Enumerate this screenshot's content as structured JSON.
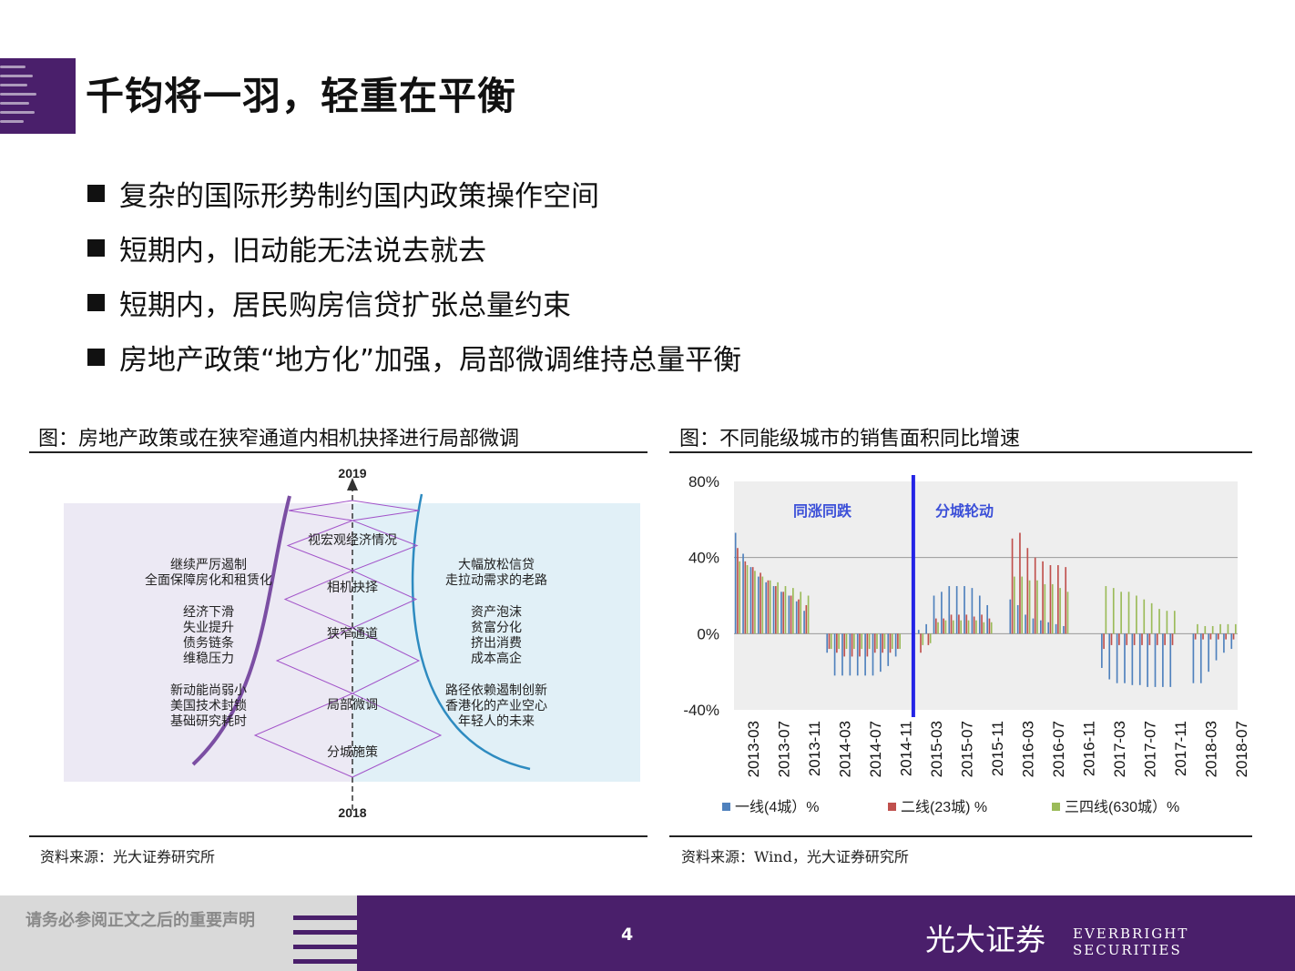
{
  "page": {
    "title": "千钧将一羽，轻重在平衡",
    "bullets": [
      "复杂的国际形势制约国内政策操作空间",
      "短期内，旧动能无法说去就去",
      "短期内，居民购房信贷扩张总量约束",
      "房地产政策“地方化”加强，局部微调维持总量平衡"
    ]
  },
  "figure_left": {
    "title": "图：房地产政策或在狭窄通道内相机抉择进行局部微调",
    "source": "资料来源：光大证券研究所",
    "top_year": "2019",
    "bottom_year": "2018",
    "center_labels": [
      "视宏观经济情况",
      "相机抉择",
      "狭窄通道",
      "局部微调",
      "分城施策"
    ],
    "left_groups": [
      [
        "继续严厉遏制",
        "全面保障房化和租赁化"
      ],
      [
        "经济下滑",
        "失业提升",
        "债务链条",
        "维稳压力"
      ],
      [
        "新动能尚弱小",
        "美国技术封锁",
        "基础研究耗时"
      ]
    ],
    "right_groups": [
      [
        "大幅放松信贷",
        "走拉动需求的老路"
      ],
      [
        "资产泡沫",
        "贫富分化",
        "挤出消费",
        "成本高企"
      ],
      [
        "路径依赖遏制创新",
        "香港化的产业空心",
        "年轻人的未来"
      ]
    ],
    "colors": {
      "left_fill": "#ece9f4",
      "right_fill": "#e1f0f7",
      "left_curve": "#7b4ea3",
      "right_curve": "#2e8bc0",
      "zigzag": "#a253c9"
    }
  },
  "figure_right": {
    "title": "图：不同能级城市的销售面积同比增速",
    "source": "资料来源：Wind，光大证券研究所"
  },
  "chart_data": {
    "type": "bar",
    "ylim": [
      -40,
      80
    ],
    "y_ticks": [
      "80%",
      "40%",
      "0%",
      "-40%"
    ],
    "y_tick_values": [
      80,
      40,
      0,
      -40
    ],
    "x_tick_labels": [
      "2013-03",
      "2013-07",
      "2013-11",
      "2014-03",
      "2014-07",
      "2014-11",
      "2015-03",
      "2015-07",
      "2015-11",
      "2016-03",
      "2016-07",
      "2016-11",
      "2017-03",
      "2017-07",
      "2017-11",
      "2018-03",
      "2018-07"
    ],
    "x_start": "2013-01",
    "x_end": "2018-10",
    "annotations": [
      "同涨同跌",
      "分城轮动"
    ],
    "divider_at": "2014-12",
    "grid": "horizontal-at-40",
    "legend_position": "bottom",
    "colors": {
      "tier1": "#4f81bd",
      "tier2": "#c0504d",
      "tier34": "#9bbb59",
      "divider": "#2323e6",
      "annotation": "#3b4fd8"
    },
    "series": [
      {
        "name": "一线(4城）%",
        "values": [
          53,
          42,
          35,
          30,
          27,
          25,
          22,
          20,
          17,
          12,
          null,
          null,
          -10,
          -22,
          -22,
          -22,
          -22,
          -22,
          -22,
          -20,
          -17,
          -12,
          null,
          null,
          2,
          5,
          20,
          22,
          25,
          25,
          25,
          24,
          20,
          15,
          null,
          null,
          18,
          15,
          10,
          8,
          7,
          6,
          5,
          4,
          null,
          null,
          null,
          null,
          -18,
          -24,
          -26,
          -26,
          -27,
          -27,
          -28,
          -28,
          -28,
          -28,
          null,
          null,
          -26,
          -26,
          -20,
          -14,
          -10,
          -8
        ]
      },
      {
        "name": "二线(23城) %",
        "values": [
          45,
          38,
          35,
          32,
          28,
          25,
          22,
          20,
          18,
          15,
          null,
          null,
          -8,
          -10,
          -12,
          -12,
          -12,
          -12,
          -10,
          -10,
          -10,
          -8,
          null,
          null,
          -10,
          -6,
          8,
          8,
          10,
          10,
          10,
          9,
          10,
          8,
          null,
          null,
          50,
          53,
          45,
          40,
          38,
          36,
          36,
          35,
          null,
          null,
          null,
          null,
          -8,
          -6,
          -6,
          -6,
          -6,
          -6,
          -6,
          -6,
          -6,
          -6,
          null,
          null,
          -3,
          -3,
          -3,
          -3,
          -3,
          -3
        ]
      },
      {
        "name": "三四线(630城）%",
        "values": [
          38,
          36,
          33,
          30,
          28,
          27,
          25,
          24,
          22,
          20,
          null,
          null,
          -8,
          -8,
          -8,
          -8,
          -8,
          -8,
          -8,
          -8,
          -8,
          -8,
          null,
          null,
          -6,
          -5,
          6,
          7,
          7,
          7,
          7,
          7,
          6,
          6,
          null,
          null,
          30,
          30,
          28,
          28,
          26,
          26,
          24,
          22,
          null,
          null,
          null,
          null,
          25,
          24,
          22,
          22,
          20,
          18,
          16,
          13,
          12,
          12,
          null,
          null,
          5,
          4,
          4,
          5,
          5,
          5
        ]
      }
    ]
  },
  "footer": {
    "notice": "请务必参阅正文之后的重要声明",
    "page_number": "4",
    "brand_cn": "光大证券",
    "brand_en": "EVERBRIGHT SECURITIES"
  }
}
